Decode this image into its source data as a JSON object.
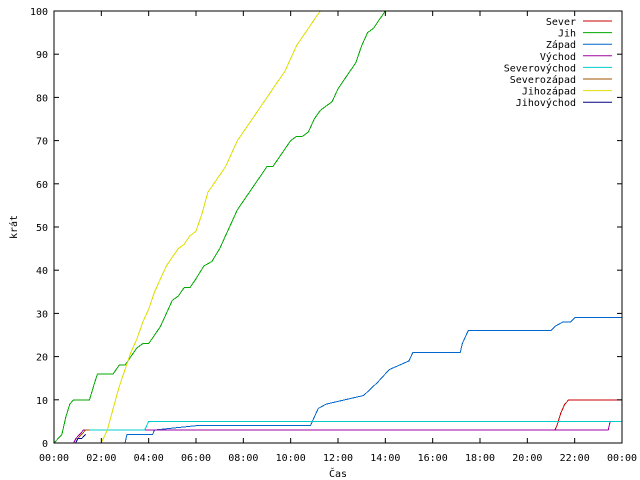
{
  "chart_data": {
    "type": "line",
    "title": "",
    "xlabel": "Čas",
    "ylabel": "krát",
    "xlim": [
      "00:00",
      "24:00"
    ],
    "ylim": [
      0,
      100
    ],
    "grid": false,
    "legend_position": "top-right",
    "x_ticks": [
      "00:00",
      "02:00",
      "04:00",
      "06:00",
      "08:00",
      "10:00",
      "12:00",
      "14:00",
      "16:00",
      "18:00",
      "20:00",
      "22:00",
      "00:00"
    ],
    "y_ticks": [
      "0",
      "10",
      "20",
      "30",
      "40",
      "50",
      "60",
      "70",
      "80",
      "90",
      "100"
    ],
    "series": [
      {
        "name": "Sever",
        "color": "#cc0000",
        "x": [
          "21:10",
          "21:15",
          "21:25",
          "21:35",
          "21:45",
          "24:00"
        ],
        "y": [
          3,
          4,
          7,
          9,
          10,
          10
        ]
      },
      {
        "name": "Jih",
        "color": "#00aa00",
        "x": [
          "00:00",
          "00:20",
          "00:30",
          "00:40",
          "00:50",
          "01:30",
          "01:40",
          "01:50",
          "02:30",
          "02:45",
          "03:00",
          "03:15",
          "03:30",
          "03:45",
          "04:00",
          "04:15",
          "04:30",
          "04:45",
          "05:00",
          "05:15",
          "05:30",
          "05:45",
          "06:00",
          "06:20",
          "06:40",
          "07:00",
          "07:15",
          "07:30",
          "07:45",
          "08:00",
          "08:15",
          "08:30",
          "08:45",
          "09:00",
          "09:15",
          "09:30",
          "09:45",
          "10:00",
          "10:15",
          "10:30",
          "10:45",
          "11:00",
          "11:15",
          "11:30",
          "11:45",
          "12:00",
          "12:15",
          "12:30",
          "12:45",
          "13:00",
          "13:15",
          "13:30",
          "13:45",
          "14:00",
          "14:10"
        ],
        "y": [
          0,
          2,
          6,
          9,
          10,
          10,
          13,
          16,
          16,
          18,
          18,
          20,
          22,
          23,
          23,
          25,
          27,
          30,
          33,
          34,
          36,
          36,
          38,
          41,
          42,
          45,
          48,
          51,
          54,
          56,
          58,
          60,
          62,
          64,
          64,
          66,
          68,
          70,
          71,
          71,
          72,
          75,
          77,
          78,
          79,
          82,
          84,
          86,
          88,
          92,
          95,
          96,
          98,
          100,
          100
        ]
      },
      {
        "name": "Západ",
        "color": "#0066cc",
        "x": [
          "03:00",
          "03:05",
          "04:10",
          "04:15",
          "06:00",
          "08:30",
          "10:50",
          "11:00",
          "11:10",
          "11:30",
          "13:05",
          "13:40",
          "13:50",
          "14:00",
          "14:10",
          "15:00",
          "15:10",
          "17:10",
          "17:15",
          "17:30",
          "21:00",
          "21:10",
          "21:30",
          "21:50",
          "22:00",
          "24:00"
        ],
        "y": [
          0,
          2,
          2,
          3,
          4,
          4,
          4,
          6,
          8,
          9,
          11,
          14,
          15,
          16,
          17,
          19,
          21,
          21,
          23,
          26,
          26,
          27,
          28,
          28,
          29,
          29
        ]
      },
      {
        "name": "Východ",
        "color": "#a000a0",
        "x": [
          "00:50",
          "00:55",
          "01:05",
          "01:15",
          "23:25",
          "23:30",
          "24:00"
        ],
        "y": [
          0,
          1,
          2,
          3,
          3,
          5,
          5
        ]
      },
      {
        "name": "Severovýchod",
        "color": "#00cccc",
        "x": [
          "01:20",
          "01:25",
          "03:50",
          "04:00",
          "24:00"
        ],
        "y": [
          3,
          3,
          3,
          5,
          5
        ]
      },
      {
        "name": "Severozápad",
        "color": "#a05000",
        "x": [
          "00:55",
          "01:00",
          "01:10",
          "01:20",
          "01:30"
        ],
        "y": [
          0,
          1,
          2,
          3,
          3
        ]
      },
      {
        "name": "Jihozápad",
        "color": "#dddd00",
        "x": [
          "02:00",
          "02:15",
          "02:30",
          "02:45",
          "03:00",
          "03:15",
          "03:30",
          "03:45",
          "04:00",
          "04:15",
          "04:30",
          "04:45",
          "05:00",
          "05:15",
          "05:30",
          "05:45",
          "06:00",
          "06:15",
          "06:30",
          "06:45",
          "07:00",
          "07:15",
          "07:30",
          "07:45",
          "08:00",
          "08:15",
          "08:30",
          "08:45",
          "09:00",
          "09:15",
          "09:30",
          "09:45",
          "10:00",
          "10:15",
          "10:30",
          "10:45",
          "11:00",
          "11:15",
          "11:30"
        ],
        "y": [
          0,
          3,
          8,
          13,
          17,
          21,
          24,
          28,
          31,
          35,
          38,
          41,
          43,
          45,
          46,
          48,
          49,
          53,
          58,
          60,
          62,
          64,
          67,
          70,
          72,
          74,
          76,
          78,
          80,
          82,
          84,
          86,
          89,
          92,
          94,
          96,
          98,
          100,
          100
        ]
      },
      {
        "name": "Jihovýchod",
        "color": "#000080",
        "x": [
          "00:55",
          "01:00",
          "01:10",
          "01:20"
        ],
        "y": [
          0,
          1,
          1,
          2
        ]
      }
    ]
  }
}
